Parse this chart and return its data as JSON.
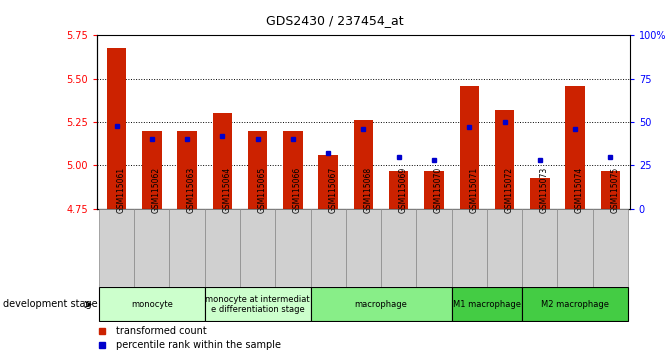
{
  "title": "GDS2430 / 237454_at",
  "samples": [
    "GSM115061",
    "GSM115062",
    "GSM115063",
    "GSM115064",
    "GSM115065",
    "GSM115066",
    "GSM115067",
    "GSM115068",
    "GSM115069",
    "GSM115070",
    "GSM115071",
    "GSM115072",
    "GSM115073",
    "GSM115074",
    "GSM115075"
  ],
  "bar_values": [
    5.68,
    5.2,
    5.2,
    5.3,
    5.2,
    5.2,
    5.06,
    5.26,
    4.97,
    4.97,
    5.46,
    5.32,
    4.93,
    5.46,
    4.97
  ],
  "percentile_values": [
    48,
    40,
    40,
    42,
    40,
    40,
    32,
    46,
    30,
    28,
    47,
    50,
    28,
    46,
    30
  ],
  "y_min": 4.75,
  "y_max": 5.75,
  "bar_color": "#cc2200",
  "blue_color": "#0000cc",
  "background_color": "#ffffff",
  "group_data": [
    {
      "label": "monocyte",
      "start": 0,
      "end": 2,
      "color": "#ccffcc"
    },
    {
      "label": "monocyte at intermediat\ne differentiation stage",
      "start": 3,
      "end": 5,
      "color": "#ccffcc"
    },
    {
      "label": "macrophage",
      "start": 6,
      "end": 9,
      "color": "#88ee88"
    },
    {
      "label": "M1 macrophage",
      "start": 10,
      "end": 11,
      "color": "#44cc44"
    },
    {
      "label": "M2 macrophage",
      "start": 12,
      "end": 14,
      "color": "#44cc44"
    }
  ],
  "grid_values": [
    5.0,
    5.25,
    5.5
  ],
  "left_ticks": [
    4.75,
    5.0,
    5.25,
    5.5,
    5.75
  ],
  "right_ticks": [
    0,
    25,
    50,
    75,
    100
  ],
  "legend_items": [
    {
      "color": "#cc2200",
      "label": "transformed count"
    },
    {
      "color": "#0000cc",
      "label": "percentile rank within the sample"
    }
  ]
}
